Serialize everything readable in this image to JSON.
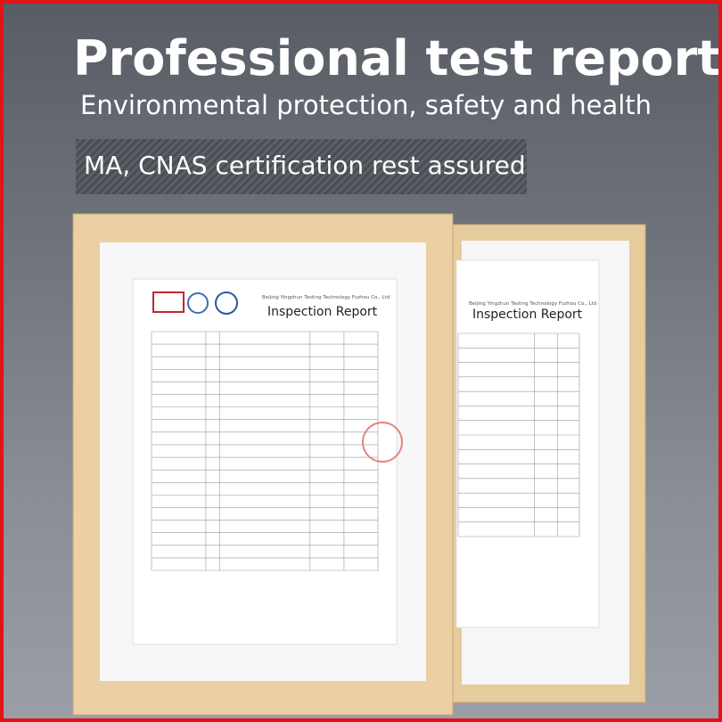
{
  "header": {
    "title": "Professional test report",
    "subtitle": "Environmental protection, safety and health",
    "badge": "MA, CNAS certification rest assured"
  },
  "documents": [
    {
      "company": "Beijing Yingzhun Testing Technology Fuzhou Co., Ltd",
      "heading": "Inspection Report"
    },
    {
      "company": "Beijing Yingzhun Testing Technology Fuzhou Co., Ltd",
      "heading": "Inspection Report"
    }
  ]
}
